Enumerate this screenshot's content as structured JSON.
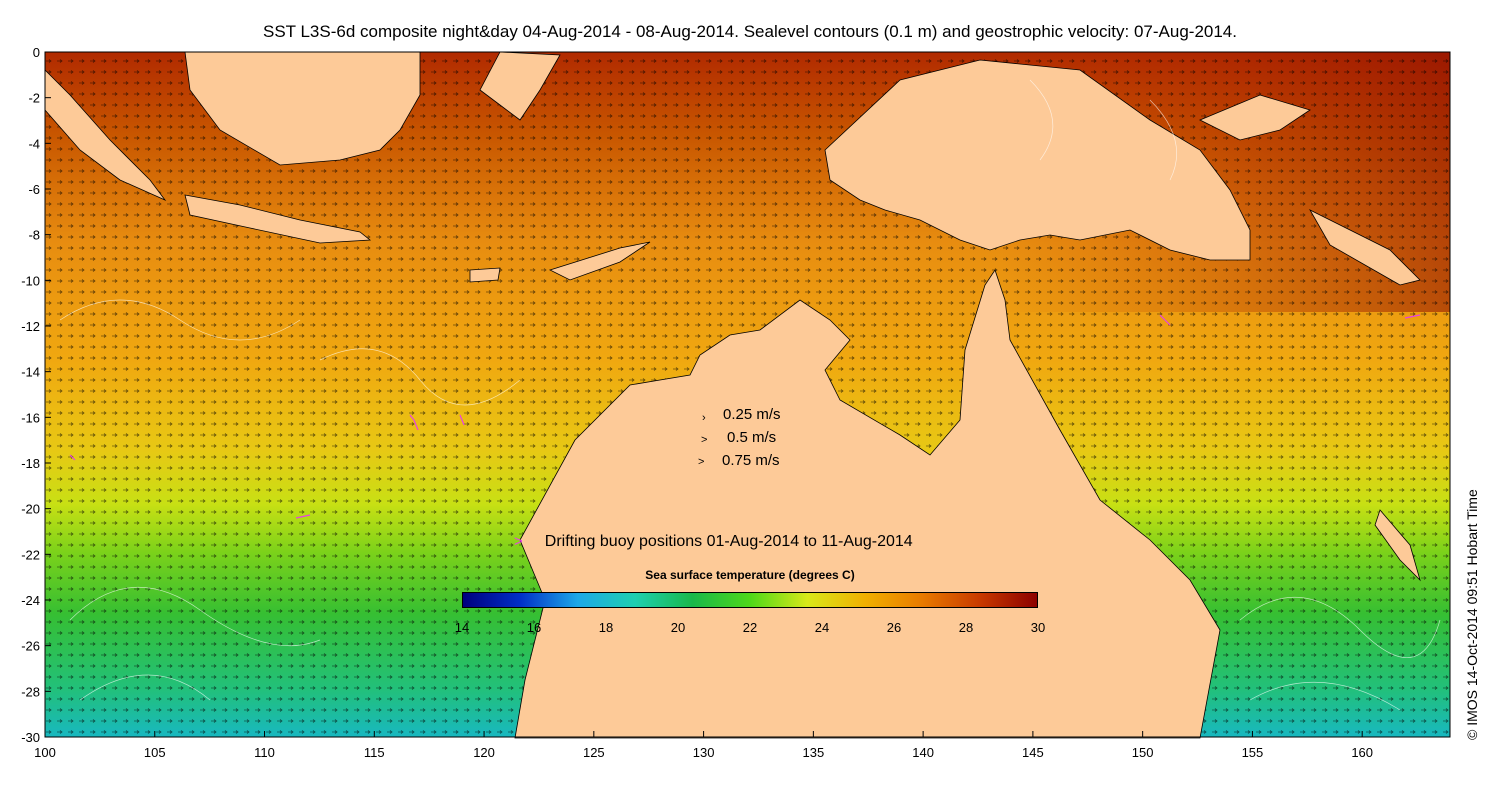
{
  "title": "SST L3S-6d composite night&day 04-Aug-2014 - 08-Aug-2014. Sealevel contours (0.1 m) and geostrophic velocity: 07-Aug-2014.",
  "copyright": "© IMOS 14-Oct-2014 09:51 Hobart Time",
  "axes": {
    "x_ticks": [
      "100",
      "105",
      "110",
      "115",
      "120",
      "125",
      "130",
      "135",
      "140",
      "145",
      "150",
      "155",
      "160"
    ],
    "y_ticks": [
      "0",
      "-2",
      "-4",
      "-6",
      "-8",
      "-10",
      "-12",
      "-14",
      "-16",
      "-18",
      "-20",
      "-22",
      "-24",
      "-26",
      "-28",
      "-30"
    ],
    "lon_range": [
      100,
      164
    ],
    "lat_range": [
      -30,
      0
    ]
  },
  "velocity_key": [
    {
      "label": "0.25 m/s",
      "arrow": "›"
    },
    {
      "label": "0.5 m/s",
      "arrow": ">"
    },
    {
      "label": "0.75 m/s",
      "arrow": ">"
    }
  ],
  "buoy_legend": {
    "symbol": ">",
    "label": "Drifting buoy positions 01-Aug-2014 to 11-Aug-2014",
    "color": "#e640e6"
  },
  "colorbar": {
    "title": "Sea surface temperature (degrees C)",
    "ticks": [
      "14",
      "16",
      "18",
      "20",
      "22",
      "24",
      "26",
      "28",
      "30"
    ],
    "range": [
      14,
      30
    ],
    "colors": [
      "#00007f",
      "#0030c8",
      "#1ea8e8",
      "#1ecfb0",
      "#19b84a",
      "#4ed81a",
      "#d8e81a",
      "#f0b000",
      "#e87a00",
      "#c83a00",
      "#8c0000"
    ]
  },
  "colors": {
    "land": "#fdca98",
    "background": "#ffffff"
  }
}
